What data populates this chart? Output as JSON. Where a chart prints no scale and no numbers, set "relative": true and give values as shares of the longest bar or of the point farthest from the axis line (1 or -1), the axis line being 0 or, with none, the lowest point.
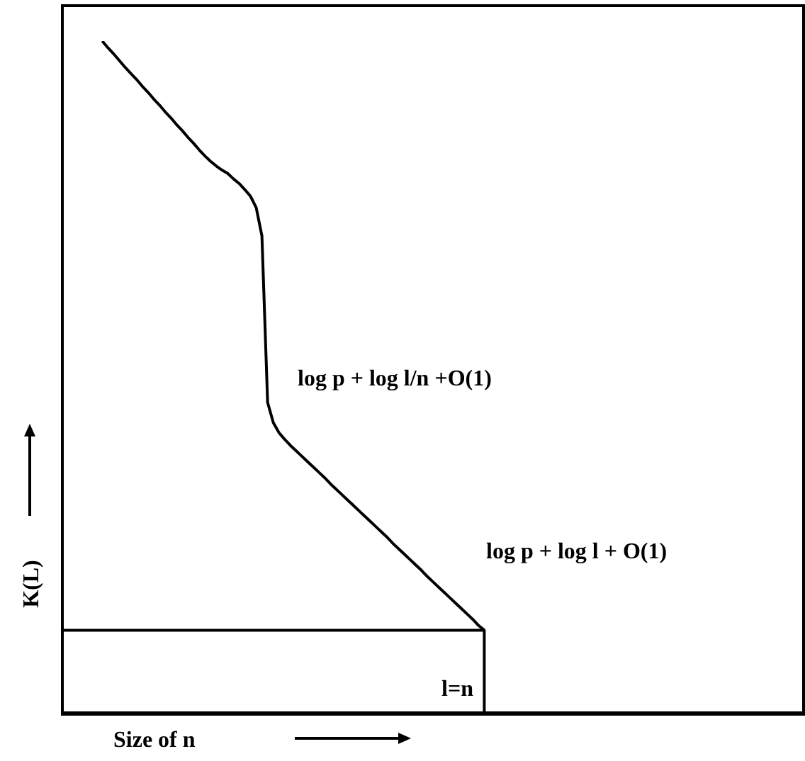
{
  "chart_data": {
    "type": "line",
    "relative": true,
    "xlabel": "Size of n",
    "ylabel": "K(L)",
    "annotations": [
      "log p + log l/n +O(1)",
      "log p + log l + O(1)",
      "l=n"
    ],
    "categories": [
      null,
      null,
      null,
      null,
      null,
      null,
      null,
      null,
      null,
      null,
      null,
      null,
      null,
      null,
      null,
      null,
      null,
      null,
      null,
      null,
      null,
      null,
      null,
      null,
      null,
      null,
      null,
      null,
      null,
      null,
      null,
      null,
      null,
      null,
      null,
      null,
      null,
      null,
      null,
      null,
      null,
      null,
      null,
      null,
      null,
      null,
      null,
      null,
      null,
      null,
      null,
      null,
      null,
      null,
      null,
      null,
      null,
      null,
      null,
      null,
      null,
      null,
      null,
      null,
      null,
      null,
      null,
      null,
      null,
      null,
      null,
      null,
      null,
      null,
      null,
      null,
      null,
      null,
      null,
      null,
      null,
      null,
      null,
      null,
      null,
      null,
      null,
      null,
      null,
      null,
      null,
      null,
      null,
      null,
      null,
      null,
      null,
      null,
      null,
      null,
      null,
      null,
      null,
      null,
      null,
      null,
      null,
      null,
      null,
      null,
      null,
      null,
      null,
      null,
      null,
      null,
      null,
      null,
      null,
      null,
      null,
      null,
      null,
      null,
      null,
      null,
      null,
      null,
      null,
      null,
      null
    ],
    "series": [
      {
        "type": "line",
        "color": "#000000",
        "values": [
          null,
          null,
          null,
          null,
          null,
          null,
          null,
          1,
          0.99,
          0.981,
          0.971,
          0.961,
          0.952,
          0.943,
          0.933,
          0.924,
          0.914,
          0.905,
          0.895,
          0.886,
          0.876,
          0.867,
          0.857,
          0.848,
          0.838,
          0.829,
          0.821,
          0.814,
          0.808,
          0.803,
          0.795,
          0.788,
          0.779,
          0.769,
          0.752,
          0.71,
          0.462,
          0.432,
          0.417,
          0.407,
          0.398,
          0.39,
          0.382,
          0.374,
          0.366,
          0.358,
          0.35,
          0.341,
          0.333,
          0.325,
          0.317,
          0.309,
          0.301,
          0.293,
          0.285,
          0.277,
          0.269,
          0.261,
          0.252,
          0.244,
          0.236,
          0.228,
          0.22,
          0.212,
          0.203,
          0.195,
          0.187,
          0.179,
          0.171,
          0.163,
          0.155,
          0.147,
          0.139,
          0.13,
          0.123,
          null,
          null,
          null,
          null,
          null,
          null,
          null,
          null,
          null,
          null,
          null,
          null,
          null,
          null,
          null,
          null,
          null,
          null,
          null,
          null,
          null,
          null,
          null,
          null,
          null,
          null,
          null,
          null,
          null,
          null,
          null,
          null,
          null,
          null,
          null,
          null,
          null,
          null,
          null,
          null,
          null,
          null,
          null,
          null,
          null,
          null,
          null,
          null,
          null,
          null,
          null,
          null,
          null,
          null,
          null,
          null
        ]
      },
      {
        "type": "step",
        "color": "#000000",
        "values": [
          0.123,
          0.123,
          0.123,
          0.123,
          0.123,
          0.123,
          0.123,
          0.123,
          0.123,
          0.123,
          0.123,
          0.123,
          0.123,
          0.123,
          0.123,
          0.123,
          0.123,
          0.123,
          0.123,
          0.123,
          0.123,
          0.123,
          0.123,
          0.123,
          0.123,
          0.123,
          0.123,
          0.123,
          0.123,
          0.123,
          0.123,
          0.123,
          0.123,
          0.123,
          0.123,
          0.123,
          0.123,
          0.123,
          0.123,
          0.123,
          0.123,
          0.123,
          0.123,
          0.123,
          0.123,
          0.123,
          0.123,
          0.123,
          0.123,
          0.123,
          0.123,
          0.123,
          0.123,
          0.123,
          0.123,
          0.123,
          0.123,
          0.123,
          0.123,
          0.123,
          0.123,
          0.123,
          0.123,
          0.123,
          0.123,
          0.123,
          0.123,
          0.123,
          0.123,
          0.123,
          0.123,
          0.123,
          0.123,
          0.123,
          0.123,
          0,
          null,
          null,
          null,
          null,
          null,
          null,
          null,
          null,
          null,
          null,
          null,
          null,
          null,
          null,
          null,
          null,
          null,
          null,
          null,
          null,
          null,
          null,
          null,
          null,
          null,
          null,
          null,
          null,
          null,
          null,
          null,
          null,
          null,
          null,
          null,
          null,
          null,
          null,
          null,
          null,
          null,
          null,
          null,
          null,
          null,
          null,
          null,
          null,
          null,
          null,
          null,
          null,
          null,
          null,
          null
        ]
      }
    ]
  }
}
